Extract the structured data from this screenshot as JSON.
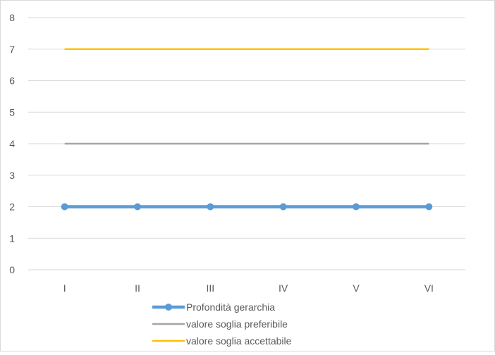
{
  "chart_data": {
    "type": "line",
    "title": "",
    "xlabel": "",
    "ylabel": "",
    "categories": [
      "I",
      "II",
      "III",
      "IV",
      "V",
      "VI"
    ],
    "ylim": [
      0,
      8
    ],
    "y_ticks": [
      "0",
      "1",
      "2",
      "3",
      "4",
      "5",
      "6",
      "7",
      "8"
    ],
    "grid": true,
    "legend_position": "bottom",
    "series": [
      {
        "name": "Profondità gerarchia",
        "values": [
          2,
          2,
          2,
          2,
          2,
          2
        ],
        "color": "#5B9BD5",
        "markers": true
      },
      {
        "name": "valore soglia preferibile",
        "values": [
          4,
          4,
          4,
          4,
          4,
          4
        ],
        "color": "#A5A5A5",
        "markers": false
      },
      {
        "name": "valore soglia accettabile",
        "values": [
          7,
          7,
          7,
          7,
          7,
          7
        ],
        "color": "#FFC000",
        "markers": false
      }
    ]
  },
  "colors": {
    "grid": "#D9D9D9",
    "axis_text": "#595959",
    "border": "#D9D9D9"
  }
}
